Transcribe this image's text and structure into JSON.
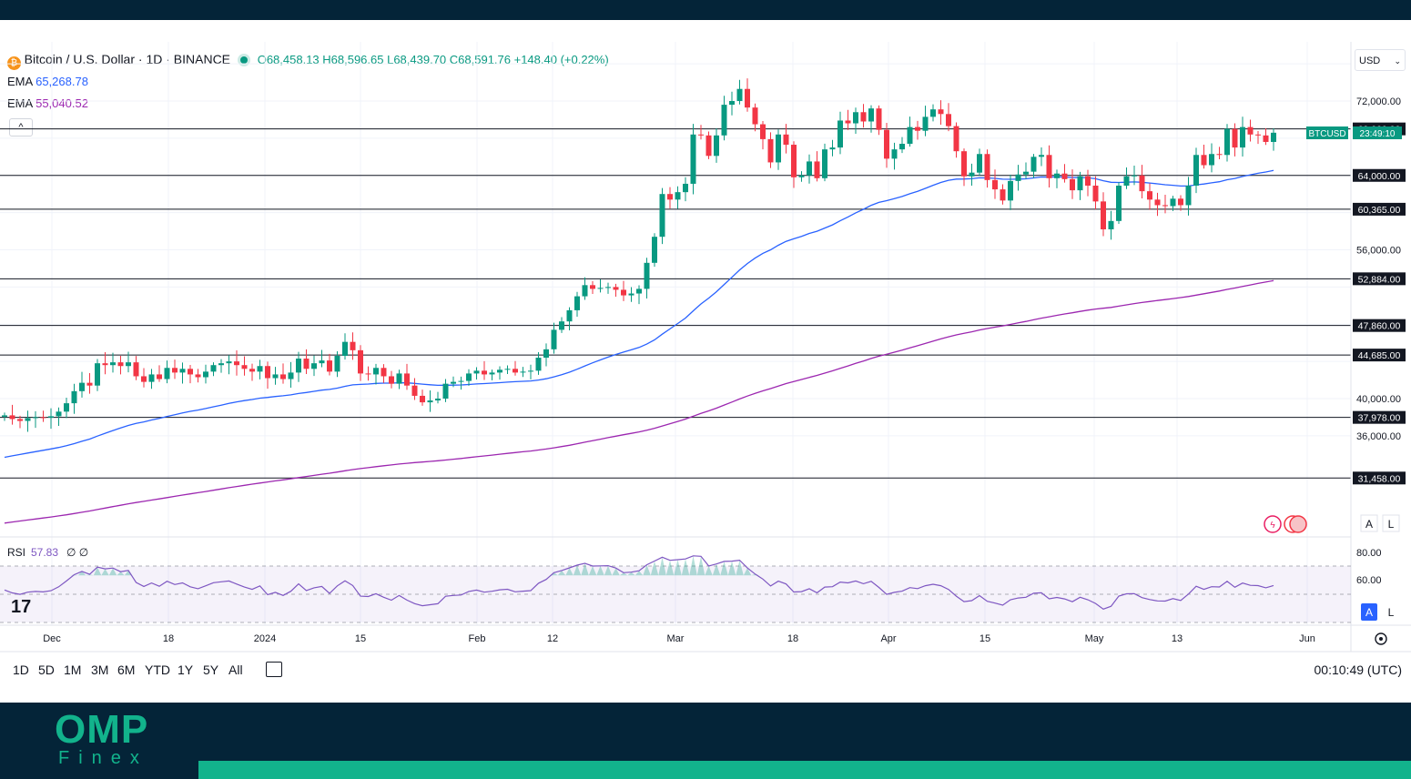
{
  "header": {
    "symbol_title": "Bitcoin / U.S. Dollar · 1D · BINANCE",
    "ohlc": "O68,458.13 H68,596.65 L68,439.70 C68,591.76 +148.40 (+0.22%)",
    "ema1_label": "EMA",
    "ema1_value": "65,268.78",
    "ema2_label": "EMA",
    "ema2_value": "55,040.52",
    "collapse": "^",
    "currency": "USD",
    "ticker_tag": "BTCUSD",
    "countdown": "23:49:10"
  },
  "rsi": {
    "label": "RSI",
    "value": "57.83",
    "extra": "∅ ∅",
    "levels": [
      "80.00",
      "60.00"
    ]
  },
  "toolbar": {
    "ranges": [
      "1D",
      "5D",
      "1M",
      "3M",
      "6M",
      "YTD",
      "1Y",
      "5Y",
      "All"
    ],
    "clock": "00:10:49 (UTC)",
    "scale_a": "A",
    "scale_l": "L"
  },
  "brand": {
    "name": "OMP",
    "sub": "Finex"
  },
  "colors": {
    "up": "#089981",
    "down": "#f23645",
    "ema_fast": "#2962ff",
    "ema_slow": "#9c27b0",
    "rsi": "#7e57c2",
    "brand": "#12b38c",
    "dark": "#042438"
  },
  "chart_data": {
    "type": "candlestick",
    "title": "Bitcoin / U.S. Dollar · 1D · BINANCE",
    "x_ticks": [
      "Dec",
      "18",
      "2024",
      "15",
      "Feb",
      "12",
      "Mar",
      "18",
      "Apr",
      "15",
      "May",
      "13",
      "Jun"
    ],
    "y_ticks": [
      "72,000.00",
      "56,000.00",
      "40,000.00",
      "36,000.00"
    ],
    "ylim": [
      28000,
      76000
    ],
    "horizontal_levels": [
      {
        "label": "69,000.00",
        "value": 69000
      },
      {
        "label": "64,000.00",
        "value": 64000
      },
      {
        "label": "60,365.00",
        "value": 60365
      },
      {
        "label": "52,884.00",
        "value": 52884
      },
      {
        "label": "47,860.00",
        "value": 47860
      },
      {
        "label": "44,685.00",
        "value": 44685
      },
      {
        "label": "37,978.00",
        "value": 37978
      },
      {
        "label": "31,458.00",
        "value": 31458
      }
    ],
    "last_price": 68591.76,
    "close_series": [
      38200,
      37800,
      37600,
      37900,
      38000,
      37950,
      38100,
      38600,
      39500,
      40800,
      41700,
      41400,
      43800,
      43600,
      43900,
      43500,
      43900,
      42400,
      41800,
      42600,
      42100,
      43300,
      42800,
      43200,
      42600,
      42300,
      42900,
      43600,
      43800,
      44000,
      43600,
      43200,
      42900,
      43500,
      42200,
      42600,
      42100,
      42800,
      44300,
      43200,
      43800,
      44100,
      42900,
      44600,
      46100,
      45200,
      42700,
      42600,
      43300,
      42400,
      41600,
      42700,
      41400,
      40300,
      39600,
      39800,
      40000,
      41600,
      41800,
      41900,
      42700,
      43000,
      42600,
      42800,
      43100,
      43200,
      42800,
      42900,
      43000,
      44400,
      45300,
      47400,
      48300,
      49500,
      51000,
      52200,
      51800,
      51900,
      52000,
      51700,
      51100,
      51300,
      51800,
      54600,
      57400,
      62000,
      61400,
      62200,
      63100,
      68400,
      68300,
      66100,
      68300,
      71600,
      72000,
      73300,
      71300,
      69500,
      67900,
      65400,
      68400,
      67300,
      63800,
      64000,
      65500,
      63700,
      66800,
      67000,
      69900,
      69600,
      70800,
      69800,
      71200,
      68900,
      65800,
      66800,
      67400,
      69200,
      68800,
      70300,
      71100,
      70600,
      69300,
      66600,
      63900,
      64300,
      66300,
      63500,
      62500,
      61300,
      63400,
      64100,
      64400,
      66000,
      66200,
      63700,
      64200,
      63600,
      62400,
      63900,
      62900,
      61200,
      58200,
      59100,
      62900,
      63900,
      64000,
      62300,
      61400,
      60800,
      60700,
      61500,
      60800,
      62900,
      66200,
      65100,
      66300,
      66200,
      69000,
      67000,
      69200,
      68400,
      68300,
      67600,
      68591
    ],
    "ema_fast_label": "EMA 65,268.78",
    "ema_slow_label": "EMA 55,040.52",
    "rsi_value": 57.83,
    "rsi_levels": [
      80,
      60
    ]
  }
}
